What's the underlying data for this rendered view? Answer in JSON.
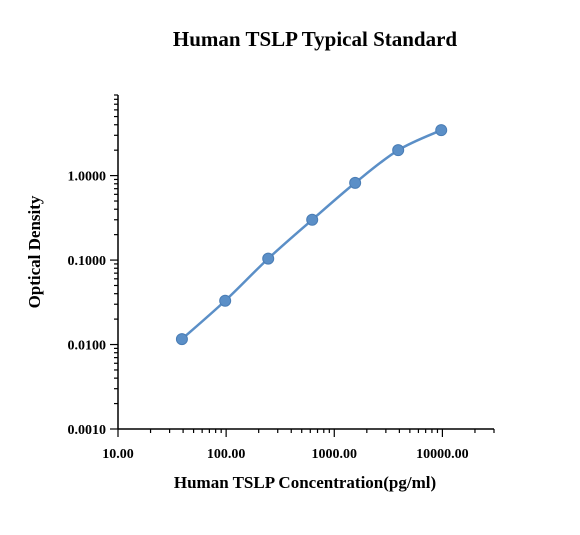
{
  "chart_data": {
    "type": "scatter",
    "title": "Human TSLP Typical Standard",
    "xlabel": "Human TSLP Concentration(pg/ml)",
    "ylabel": "Optical Density",
    "x_scale": "log",
    "y_scale": "log",
    "xlim": [
      10,
      30000
    ],
    "ylim": [
      0.001,
      9
    ],
    "x_ticks": [
      10,
      100,
      1000,
      10000
    ],
    "x_tick_labels": [
      "10.00",
      "100.00",
      "1000.00",
      "10000.00"
    ],
    "y_ticks": [
      0.001,
      0.01,
      0.1,
      1
    ],
    "y_tick_labels": [
      "0.0010",
      "0.0100",
      "0.1000",
      "1.0000"
    ],
    "grid": false,
    "legend": "none",
    "color": "#5b8fc7",
    "series": [
      {
        "x": [
          39,
          98,
          245,
          625,
          1560,
          3900,
          9750
        ],
        "y": [
          0.0116,
          0.033,
          0.104,
          0.3,
          0.82,
          2.0,
          3.45
        ]
      }
    ]
  }
}
